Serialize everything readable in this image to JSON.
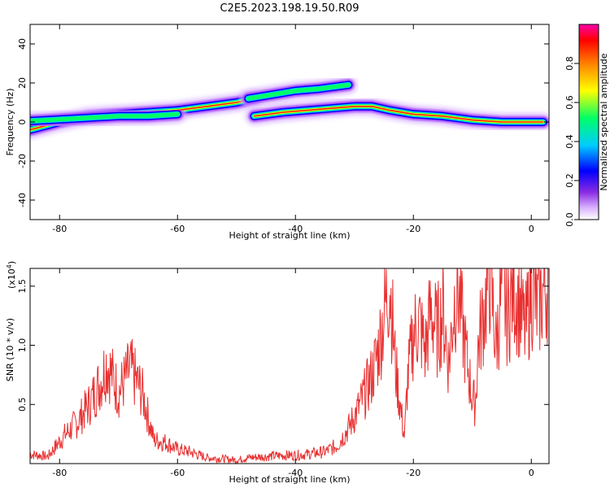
{
  "figure": {
    "title": "C2E5.2023.198.19.50.R09"
  },
  "chart_data": [
    {
      "type": "heatmap",
      "xlabel": "Height of straight line (km)",
      "ylabel": "Frequency (Hz)",
      "xlim": [
        -85,
        3
      ],
      "ylim": [
        -50,
        50
      ],
      "xticks": [
        -80,
        -60,
        -40,
        -20,
        0
      ],
      "yticks": [
        -40,
        -20,
        0,
        20,
        40
      ],
      "ridges": [
        {
          "x": [
            -85,
            -80,
            -75,
            -70,
            -65,
            -60,
            -55,
            -50,
            -47
          ],
          "freq": [
            -4,
            0,
            3,
            4,
            5,
            6,
            8,
            10,
            12
          ]
        },
        {
          "x": [
            -47,
            -42,
            -38,
            -34,
            -30,
            -27,
            -24,
            -20,
            -15,
            -10,
            -5,
            2
          ],
          "freq": [
            3,
            5,
            6,
            7,
            8,
            8,
            6,
            4,
            3,
            1,
            0,
            0
          ]
        },
        {
          "x": [
            -48,
            -44,
            -40,
            -36,
            -31
          ],
          "freq": [
            12,
            14,
            16,
            17,
            19
          ]
        },
        {
          "x": [
            -88,
            -82,
            -76,
            -70,
            -65,
            -60
          ],
          "freq": [
            0,
            1,
            2,
            3,
            3,
            4
          ]
        }
      ],
      "colorbar": {
        "label": "Normalized spectral amplitude",
        "range": [
          0,
          1
        ],
        "ticks": [
          0.0,
          0.2,
          0.4,
          0.6,
          0.8
        ],
        "colors": [
          "#ffffff",
          "#d9b3ff",
          "#8a2be2",
          "#0000ff",
          "#00ccff",
          "#00ff66",
          "#ffff00",
          "#ff8000",
          "#ff0000",
          "#ff00aa"
        ]
      }
    },
    {
      "type": "line",
      "xlabel": "Height of straight line (km)",
      "ylabel": "SNR (10 * v/v)",
      "yscale_label": "(x10",
      "yscale_exp": "4",
      "yscale_close": ")",
      "xlim": [
        -85,
        3
      ],
      "ylim": [
        0,
        1.65
      ],
      "xticks": [
        -80,
        -60,
        -40,
        -20,
        0
      ],
      "yticks": [
        0.5,
        1.0,
        1.5
      ],
      "color": "#e83030",
      "x": [
        -85,
        -82,
        -79,
        -77,
        -75,
        -73,
        -72,
        -70,
        -68,
        -66,
        -64,
        -62,
        -60,
        -58,
        -55,
        -52,
        -50,
        -48,
        -45,
        -42,
        -40,
        -38,
        -35,
        -33,
        -31,
        -29,
        -27,
        -26,
        -25,
        -24,
        -23,
        -22,
        -21.5,
        -21,
        -20,
        -19,
        -18,
        -17,
        -16,
        -15,
        -14,
        -13,
        -12.5,
        -12,
        -11,
        -10,
        -9.5,
        -9,
        -8,
        -7,
        -6,
        -5,
        -4,
        -3,
        -2,
        -1,
        0,
        1,
        2,
        3
      ],
      "y": [
        0.08,
        0.06,
        0.25,
        0.35,
        0.5,
        0.7,
        0.86,
        0.6,
        0.8,
        0.6,
        0.2,
        0.18,
        0.12,
        0.1,
        0.05,
        0.04,
        0.03,
        0.05,
        0.06,
        0.07,
        0.07,
        0.08,
        0.1,
        0.15,
        0.3,
        0.5,
        0.75,
        0.95,
        1.25,
        1.55,
        0.8,
        0.4,
        0.22,
        0.7,
        1.1,
        1.2,
        0.95,
        1.3,
        1.1,
        1.3,
        0.85,
        1.4,
        1.5,
        1.3,
        0.9,
        0.55,
        0.5,
        1.0,
        1.3,
        1.62,
        1.0,
        1.45,
        1.25,
        1.5,
        1.35,
        1.1,
        1.5,
        1.3,
        1.45,
        1.58
      ]
    }
  ]
}
